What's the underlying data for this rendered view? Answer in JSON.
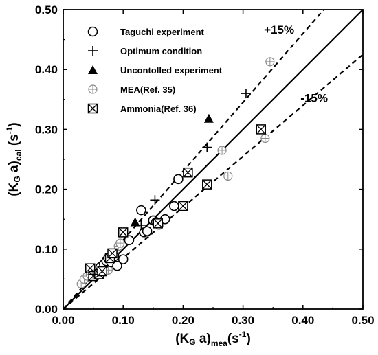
{
  "chart_data": {
    "type": "scatter",
    "xlabel": {
      "main": "(K",
      "sub1": "G",
      "mid": " a)",
      "sub2": "mea",
      "tail": "(s",
      "sup": "-1",
      "end": ")"
    },
    "ylabel": {
      "main": "(K",
      "sub1": "G",
      "mid": " a)",
      "sub2": "cal",
      "tail": " (s",
      "sup": "-1",
      "end": ")"
    },
    "xlim": [
      0,
      0.5
    ],
    "ylim": [
      0,
      0.5
    ],
    "x_ticks": [
      "0.00",
      "0.10",
      "0.20",
      "0.30",
      "0.40",
      "0.50"
    ],
    "y_ticks": [
      "0.00",
      "0.10",
      "0.20",
      "0.30",
      "0.40",
      "0.50"
    ],
    "grid": false,
    "legend_position": "top-left",
    "lines": [
      {
        "style": "solid",
        "slope": 1.0
      },
      {
        "style": "dashed",
        "slope": 1.15
      },
      {
        "style": "dashed",
        "slope": 0.85
      }
    ],
    "annotations": [
      {
        "text": "+15%",
        "x": 0.335,
        "y": 0.46
      },
      {
        "text": "-15%",
        "x": 0.396,
        "y": 0.346
      }
    ],
    "series": [
      {
        "name": "Taguchi experiment",
        "marker": "open-circle",
        "points": [
          [
            0.052,
            0.058
          ],
          [
            0.062,
            0.07
          ],
          [
            0.068,
            0.075
          ],
          [
            0.072,
            0.08
          ],
          [
            0.075,
            0.085
          ],
          [
            0.08,
            0.078
          ],
          [
            0.085,
            0.088
          ],
          [
            0.09,
            0.072
          ],
          [
            0.1,
            0.083
          ],
          [
            0.11,
            0.115
          ],
          [
            0.13,
            0.165
          ],
          [
            0.135,
            0.128
          ],
          [
            0.14,
            0.13
          ],
          [
            0.15,
            0.148
          ],
          [
            0.155,
            0.145
          ],
          [
            0.17,
            0.15
          ],
          [
            0.185,
            0.172
          ],
          [
            0.192,
            0.217
          ]
        ]
      },
      {
        "name": "Optimum condition",
        "marker": "plus",
        "points": [
          [
            0.05,
            0.058
          ],
          [
            0.13,
            0.14
          ],
          [
            0.153,
            0.182
          ],
          [
            0.24,
            0.27
          ],
          [
            0.305,
            0.36
          ]
        ]
      },
      {
        "name": "Uncontolled experiment",
        "marker": "filled-triangle",
        "points": [
          [
            0.12,
            0.145
          ],
          [
            0.243,
            0.318
          ]
        ]
      },
      {
        "name": "MEA(Ref. 35)",
        "marker": "circle-plus",
        "color": "#8a8a8a",
        "points": [
          [
            0.03,
            0.042
          ],
          [
            0.035,
            0.05
          ],
          [
            0.04,
            0.055
          ],
          [
            0.045,
            0.058
          ],
          [
            0.055,
            0.065
          ],
          [
            0.06,
            0.06
          ],
          [
            0.07,
            0.065
          ],
          [
            0.075,
            0.065
          ],
          [
            0.08,
            0.082
          ],
          [
            0.085,
            0.092
          ],
          [
            0.092,
            0.105
          ],
          [
            0.095,
            0.11
          ],
          [
            0.16,
            0.14
          ],
          [
            0.265,
            0.265
          ],
          [
            0.275,
            0.222
          ],
          [
            0.337,
            0.285
          ],
          [
            0.345,
            0.413
          ]
        ]
      },
      {
        "name": "Ammonia(Ref. 36)",
        "marker": "boxed-x",
        "points": [
          [
            0.045,
            0.068
          ],
          [
            0.05,
            0.055
          ],
          [
            0.06,
            0.058
          ],
          [
            0.065,
            0.063
          ],
          [
            0.078,
            0.085
          ],
          [
            0.082,
            0.093
          ],
          [
            0.1,
            0.128
          ],
          [
            0.158,
            0.143
          ],
          [
            0.2,
            0.172
          ],
          [
            0.208,
            0.228
          ],
          [
            0.24,
            0.208
          ],
          [
            0.33,
            0.3
          ]
        ]
      }
    ]
  }
}
